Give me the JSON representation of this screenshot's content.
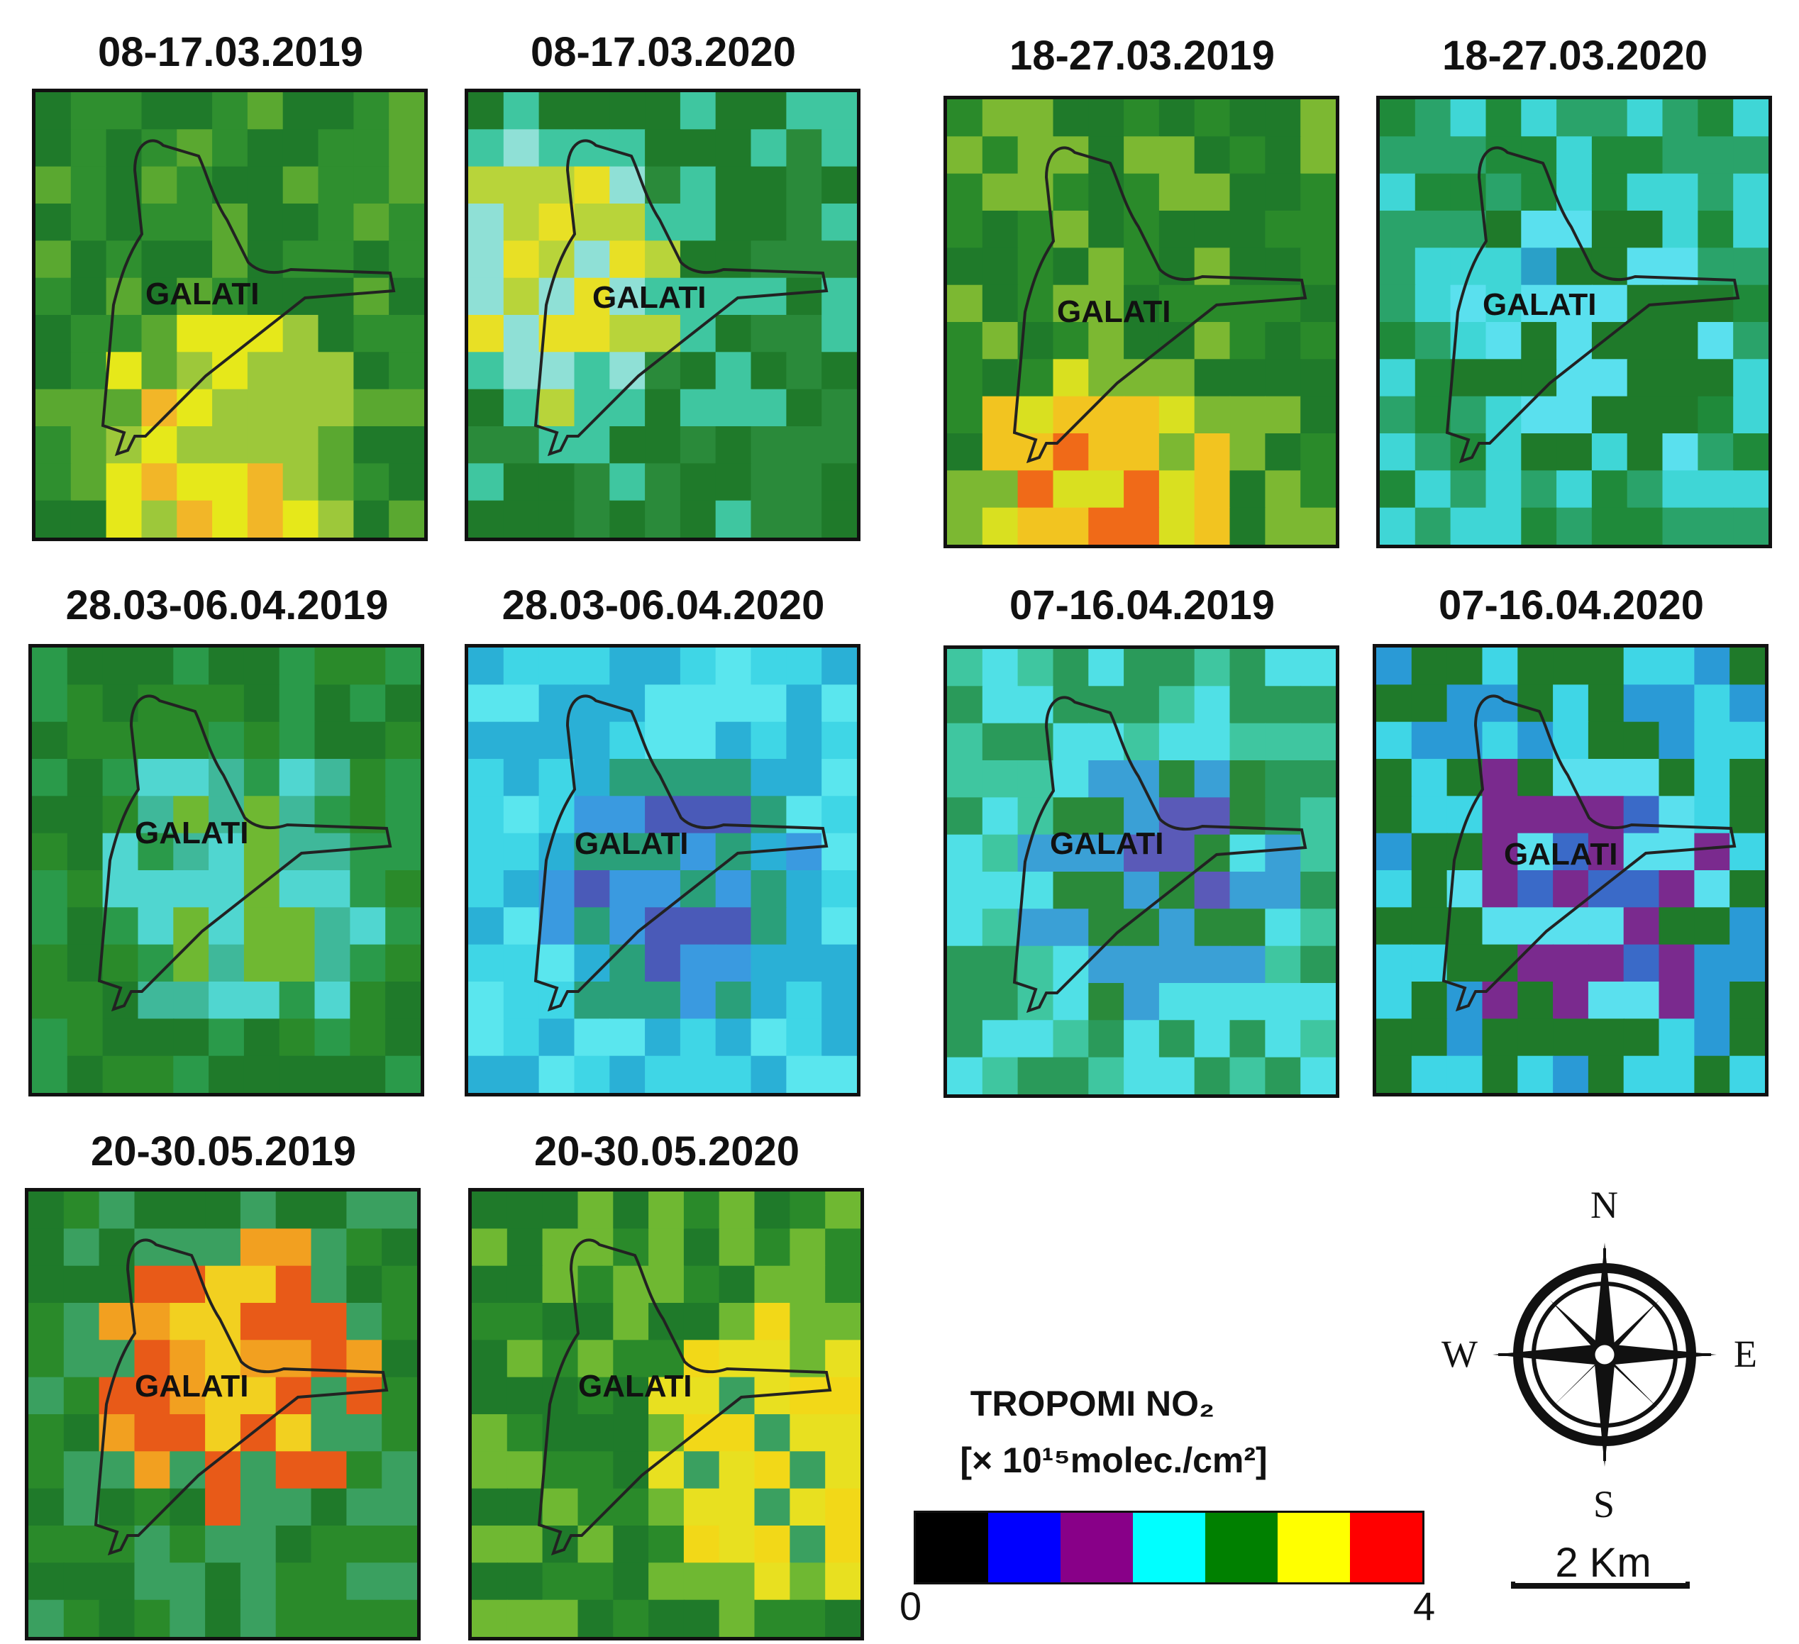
{
  "city_label": "GALATI",
  "panels": [
    {
      "title": "08-17.03.2019",
      "palette": [
        "#2f8f2f",
        "#1f7a2a",
        "#5aa830",
        "#9dc83a",
        "#e6e81a",
        "#f2b628"
      ],
      "hot": [
        0.45,
        0.75
      ]
    },
    {
      "title": "08-17.03.2020",
      "palette": [
        "#2a8a3a",
        "#1f7a2a",
        "#3fc6a0",
        "#8fe0d6",
        "#b8d43a",
        "#e8e025"
      ],
      "hot": [
        0.15,
        0.35
      ]
    },
    {
      "title": "18-27.03.2019",
      "palette": [
        "#2a8a2a",
        "#1f7a2a",
        "#7cb832",
        "#d9e020",
        "#f2c420",
        "#f06a18"
      ],
      "hot": [
        0.35,
        0.9
      ]
    },
    {
      "title": "18-27.03.2020",
      "palette": [
        "#1f8a3a",
        "#2aa36a",
        "#3fd6d6",
        "#5ae0ee",
        "#1f7a2a",
        "#2aa0c8"
      ],
      "hot": [
        0.5,
        0.5
      ]
    },
    {
      "title": "28.03-06.04.2019",
      "palette": [
        "#1f7a2a",
        "#2a8a2a",
        "#2a9a4a",
        "#3fb89a",
        "#50d6d0",
        "#6fb832"
      ],
      "hot": [
        0.5,
        0.5
      ]
    },
    {
      "title": "28.03-06.04.2020",
      "palette": [
        "#3fd6e6",
        "#5ae6ee",
        "#2ab0d6",
        "#3a9ae0",
        "#2aa07a",
        "#4a5ab8"
      ],
      "hot": [
        0.5,
        0.5
      ]
    },
    {
      "title": "07-16.04.2019",
      "palette": [
        "#2a9a5a",
        "#3fc6a0",
        "#50e0e6",
        "#2a8a3a",
        "#3aa0d6",
        "#5a5ab8"
      ],
      "hot": [
        0.5,
        0.5
      ]
    },
    {
      "title": "07-16.04.2020",
      "palette": [
        "#3fd6e6",
        "#2a9ad6",
        "#1f7a2a",
        "#7a2a8e",
        "#5ae0ee",
        "#3a6ac8"
      ],
      "hot": [
        0.5,
        0.5
      ]
    },
    {
      "title": "20-30.05.2019",
      "palette": [
        "#1f7a2a",
        "#2a8a2a",
        "#3aa060",
        "#f2a020",
        "#e85a18",
        "#f2d020"
      ],
      "hot": [
        0.5,
        0.35
      ]
    },
    {
      "title": "20-30.05.2020",
      "palette": [
        "#1f7a2a",
        "#2a8a2a",
        "#6fb832",
        "#e8e020",
        "#f2d818",
        "#3aa060"
      ],
      "hot": [
        0.75,
        0.55
      ]
    }
  ],
  "legend": {
    "title": "TROPOMI NO₂",
    "units": "[× 10¹⁵molec./cm²]",
    "colors": [
      "#000000",
      "#0000ff",
      "#880088",
      "#00ffff",
      "#008000",
      "#ffff00",
      "#ff0000"
    ],
    "min_label": "0",
    "max_label": "4"
  },
  "compass": {
    "north": "N",
    "south": "S",
    "east": "E",
    "west": "W"
  },
  "scale_label": "2 Km"
}
